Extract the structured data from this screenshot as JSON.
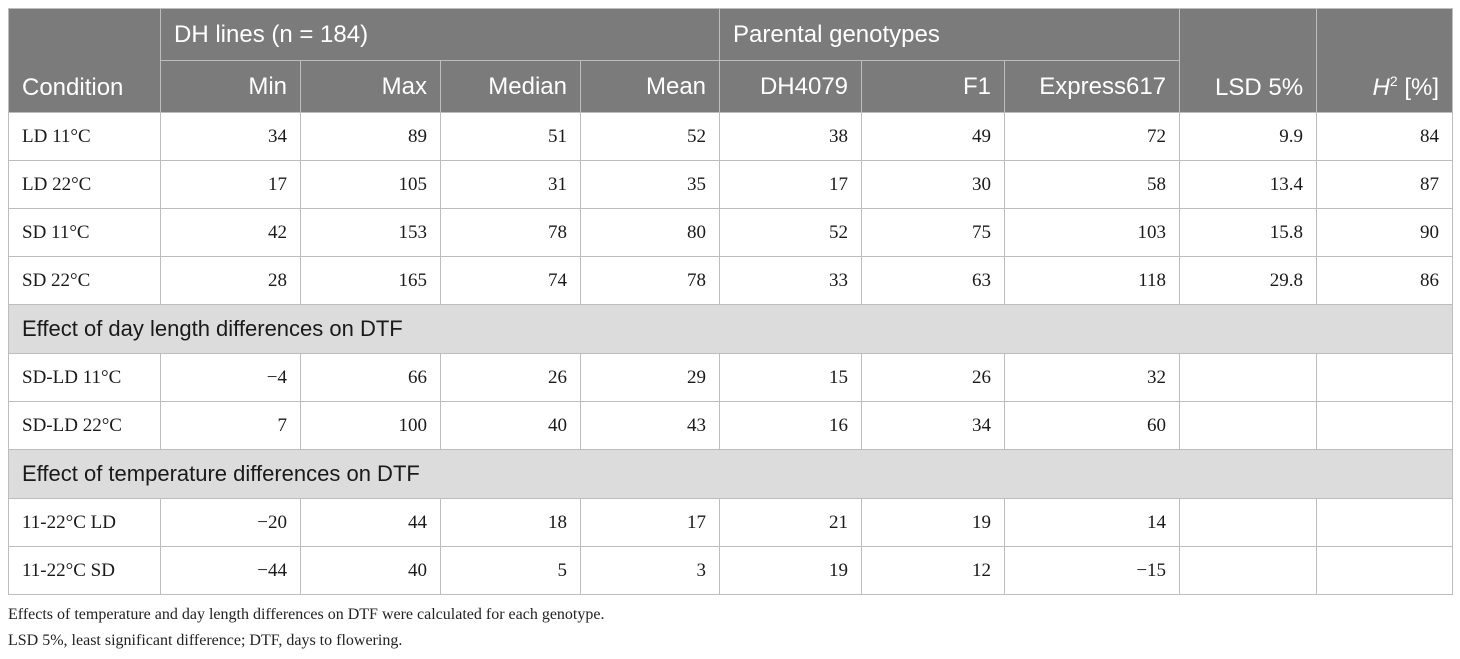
{
  "header": {
    "condition": "Condition",
    "dh_group": "DH lines (n = 184)",
    "parental_group": "Parental genotypes",
    "min": "Min",
    "max": "Max",
    "median": "Median",
    "mean": "Mean",
    "dh4079": "DH4079",
    "f1": "F1",
    "express617": "Express617",
    "lsd": "LSD 5%",
    "h2_base": "H",
    "h2_sup": "2",
    "h2_unit": " [%]"
  },
  "rows_main": [
    {
      "condition": "LD 11°C",
      "min": "34",
      "max": "89",
      "median": "51",
      "mean": "52",
      "dh4079": "38",
      "f1": "49",
      "express617": "72",
      "lsd": "9.9",
      "h2": "84"
    },
    {
      "condition": "LD 22°C",
      "min": "17",
      "max": "105",
      "median": "31",
      "mean": "35",
      "dh4079": "17",
      "f1": "30",
      "express617": "58",
      "lsd": "13.4",
      "h2": "87"
    },
    {
      "condition": "SD 11°C",
      "min": "42",
      "max": "153",
      "median": "78",
      "mean": "80",
      "dh4079": "52",
      "f1": "75",
      "express617": "103",
      "lsd": "15.8",
      "h2": "90"
    },
    {
      "condition": "SD 22°C",
      "min": "28",
      "max": "165",
      "median": "74",
      "mean": "78",
      "dh4079": "33",
      "f1": "63",
      "express617": "118",
      "lsd": "29.8",
      "h2": "86"
    }
  ],
  "section_daylength": "Effect of day length differences on DTF",
  "rows_daylength": [
    {
      "condition": "SD-LD 11°C",
      "min": "−4",
      "max": "66",
      "median": "26",
      "mean": "29",
      "dh4079": "15",
      "f1": "26",
      "express617": "32",
      "lsd": "",
      "h2": ""
    },
    {
      "condition": "SD-LD 22°C",
      "min": "7",
      "max": "100",
      "median": "40",
      "mean": "43",
      "dh4079": "16",
      "f1": "34",
      "express617": "60",
      "lsd": "",
      "h2": ""
    }
  ],
  "section_temperature": "Effect of temperature differences on DTF",
  "rows_temperature": [
    {
      "condition": "11-22°C LD",
      "min": "−20",
      "max": "44",
      "median": "18",
      "mean": "17",
      "dh4079": "21",
      "f1": "19",
      "express617": "14",
      "lsd": "",
      "h2": ""
    },
    {
      "condition": "11-22°C SD",
      "min": "−44",
      "max": "40",
      "median": "5",
      "mean": "3",
      "dh4079": "19",
      "f1": "12",
      "express617": "−15",
      "lsd": "",
      "h2": ""
    }
  ],
  "footnotes": [
    "Effects of temperature and day length differences on DTF were calculated for each genotype.",
    "LSD 5%, least significant difference; DTF, days to flowering."
  ]
}
